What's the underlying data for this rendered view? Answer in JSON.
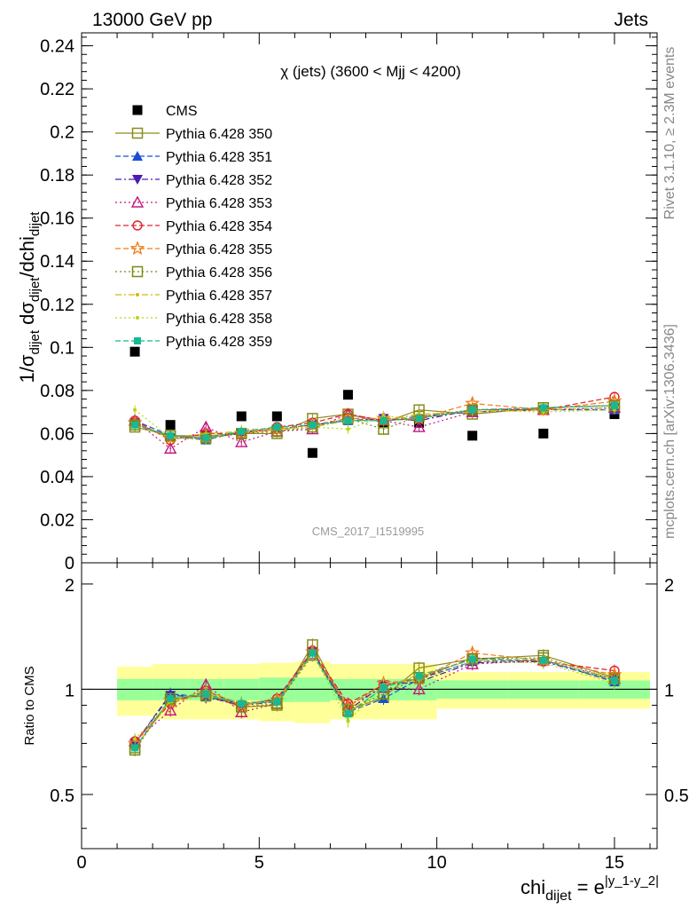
{
  "header": {
    "left": "13000 GeV pp",
    "right": "Jets"
  },
  "side_text": {
    "rivet": "Rivet 3.1.10, ≥ 2.3M events",
    "mcplots": "mcplots.cern.ch [arXiv:1306.3436]"
  },
  "watermark": "CMS_2017_I1519995",
  "chart_data": [
    {
      "type": "scatter",
      "title": "χ (jets) (3600 < Mjj < 4200)",
      "ylabel": "1/σ_dijet dσ_dijet/dchi_dijet",
      "xlim": [
        0,
        16.2
      ],
      "ylim": [
        0,
        0.246
      ],
      "y_ticks": [
        "0",
        "0.02",
        "0.04",
        "0.06",
        "0.08",
        "0.1",
        "0.12",
        "0.14",
        "0.16",
        "0.18",
        "0.2",
        "0.22",
        "0.24"
      ],
      "x": [
        1.5,
        2.5,
        3.5,
        4.5,
        5.5,
        6.5,
        7.5,
        8.5,
        9.5,
        11,
        13,
        15
      ],
      "series": [
        {
          "name": "CMS",
          "color": "#000000",
          "marker": "filled-square",
          "line": "none",
          "values": [
            0.098,
            0.064,
            0.059,
            0.068,
            0.068,
            0.051,
            0.078,
            0.065,
            0.065,
            0.059,
            0.06,
            0.069
          ]
        },
        {
          "name": "Pythia 6.428 350",
          "color": "#8c8c1f",
          "marker": "open-square",
          "line": "solid",
          "values": [
            0.063,
            0.059,
            0.059,
            0.06,
            0.06,
            0.067,
            0.069,
            0.065,
            0.071,
            0.069,
            0.072,
            0.073
          ]
        },
        {
          "name": "Pythia 6.428 351",
          "color": "#1a4fcf",
          "marker": "filled-triangle-up",
          "line": "dashed",
          "values": [
            0.066,
            0.059,
            0.057,
            0.061,
            0.062,
            0.064,
            0.066,
            0.066,
            0.068,
            0.07,
            0.071,
            0.071
          ]
        },
        {
          "name": "Pythia 6.428 352",
          "color": "#4b1bb3",
          "marker": "filled-triangle-down",
          "line": "dashdot",
          "values": [
            0.065,
            0.058,
            0.058,
            0.06,
            0.062,
            0.064,
            0.066,
            0.067,
            0.066,
            0.071,
            0.071,
            0.072
          ]
        },
        {
          "name": "Pythia 6.428 353",
          "color": "#c0187e",
          "marker": "open-triangle-up",
          "line": "dotted",
          "values": [
            0.066,
            0.053,
            0.063,
            0.056,
            0.061,
            0.062,
            0.069,
            0.066,
            0.063,
            0.07,
            0.071,
            0.072
          ]
        },
        {
          "name": "Pythia 6.428 354",
          "color": "#e0202a",
          "marker": "open-circle",
          "line": "dashed",
          "values": [
            0.066,
            0.057,
            0.06,
            0.06,
            0.063,
            0.065,
            0.069,
            0.066,
            0.067,
            0.071,
            0.071,
            0.077
          ]
        },
        {
          "name": "Pythia 6.428 355",
          "color": "#f07a1a",
          "marker": "open-star",
          "line": "dashed",
          "values": [
            0.065,
            0.058,
            0.058,
            0.06,
            0.062,
            0.064,
            0.067,
            0.067,
            0.067,
            0.074,
            0.071,
            0.075
          ]
        },
        {
          "name": "Pythia 6.428 356",
          "color": "#7a8a10",
          "marker": "open-square",
          "line": "dotted",
          "values": [
            0.064,
            0.059,
            0.058,
            0.06,
            0.061,
            0.063,
            0.067,
            0.062,
            0.068,
            0.071,
            0.072,
            0.073
          ]
        },
        {
          "name": "Pythia 6.428 357",
          "color": "#d4b80a",
          "marker": "small-dot",
          "line": "dashdot",
          "values": [
            0.064,
            0.058,
            0.06,
            0.061,
            0.062,
            0.063,
            0.066,
            0.066,
            0.069,
            0.07,
            0.071,
            0.072
          ]
        },
        {
          "name": "Pythia 6.428 358",
          "color": "#b8d80a",
          "marker": "small-dot",
          "line": "dotted",
          "values": [
            0.071,
            0.058,
            0.057,
            0.062,
            0.062,
            0.063,
            0.062,
            0.068,
            0.067,
            0.071,
            0.07,
            0.071
          ]
        },
        {
          "name": "Pythia 6.428 359",
          "color": "#18b890",
          "marker": "filled-square-small",
          "line": "dashed",
          "values": [
            0.064,
            0.059,
            0.058,
            0.061,
            0.063,
            0.064,
            0.066,
            0.066,
            0.067,
            0.071,
            0.072,
            0.073
          ]
        }
      ]
    },
    {
      "type": "scatter",
      "xlabel": "chi_dijet = e^|y_1-y_2|",
      "ylabel": "Ratio to CMS",
      "xlim": [
        0,
        16.2
      ],
      "ylim": [
        0.35,
        2.3
      ],
      "y_scale": "log",
      "x_ticks": [
        "0",
        "5",
        "10",
        "15"
      ],
      "y_ticks": [
        "0.5",
        "1",
        "2"
      ],
      "bins": [
        [
          1,
          2
        ],
        [
          2,
          3
        ],
        [
          3,
          4
        ],
        [
          4,
          5
        ],
        [
          5,
          6
        ],
        [
          6,
          7
        ],
        [
          7,
          8
        ],
        [
          8,
          9
        ],
        [
          9,
          10
        ],
        [
          10,
          12
        ],
        [
          12,
          14
        ],
        [
          14,
          16
        ]
      ],
      "band_inner": [
        0.07,
        0.07,
        0.07,
        0.07,
        0.08,
        0.08,
        0.07,
        0.07,
        0.07,
        0.06,
        0.06,
        0.06
      ],
      "band_outer": [
        0.16,
        0.18,
        0.18,
        0.18,
        0.19,
        0.2,
        0.18,
        0.18,
        0.18,
        0.12,
        0.12,
        0.12
      ],
      "x": [
        1.5,
        2.5,
        3.5,
        4.5,
        5.5,
        6.5,
        7.5,
        8.5,
        9.5,
        11,
        13,
        15
      ],
      "series": [
        {
          "name": "Pythia 6.428 350",
          "values": [
            0.68,
            0.93,
            0.97,
            0.89,
            0.9,
            1.34,
            0.87,
            0.95,
            1.15,
            1.22,
            1.25,
            1.08
          ]
        },
        {
          "name": "Pythia 6.428 351",
          "values": [
            0.7,
            0.97,
            0.95,
            0.91,
            0.93,
            1.29,
            0.86,
            0.94,
            1.07,
            1.2,
            1.21,
            1.05
          ]
        },
        {
          "name": "Pythia 6.428 352",
          "values": [
            0.7,
            0.96,
            0.95,
            0.9,
            0.92,
            1.28,
            0.87,
            1.03,
            1.05,
            1.19,
            1.2,
            1.06
          ]
        },
        {
          "name": "Pythia 6.428 353",
          "values": [
            0.71,
            0.87,
            1.03,
            0.86,
            0.91,
            1.26,
            0.9,
            1.01,
            1.0,
            1.18,
            1.21,
            1.07
          ]
        },
        {
          "name": "Pythia 6.428 354",
          "values": [
            0.71,
            0.91,
            0.99,
            0.9,
            0.94,
            1.29,
            0.91,
            1.03,
            1.07,
            1.23,
            1.2,
            1.13
          ]
        },
        {
          "name": "Pythia 6.428 355",
          "values": [
            0.7,
            0.93,
            0.97,
            0.9,
            0.93,
            1.28,
            0.89,
            1.04,
            1.07,
            1.27,
            1.21,
            1.1
          ]
        },
        {
          "name": "Pythia 6.428 356",
          "values": [
            0.67,
            0.94,
            0.96,
            0.89,
            0.91,
            1.25,
            0.87,
            0.97,
            1.08,
            1.22,
            1.23,
            1.07
          ]
        },
        {
          "name": "Pythia 6.428 357",
          "values": [
            0.68,
            0.93,
            0.99,
            0.91,
            0.92,
            1.26,
            0.86,
            1.01,
            1.1,
            1.21,
            1.21,
            1.06
          ]
        },
        {
          "name": "Pythia 6.428 358",
          "values": [
            0.72,
            0.92,
            0.96,
            0.92,
            0.92,
            1.27,
            0.81,
            1.03,
            1.06,
            1.2,
            1.19,
            1.04
          ]
        },
        {
          "name": "Pythia 6.428 359",
          "values": [
            0.68,
            0.94,
            0.97,
            0.91,
            0.92,
            1.27,
            0.85,
            1.01,
            1.09,
            1.22,
            1.21,
            1.06
          ]
        }
      ]
    }
  ]
}
